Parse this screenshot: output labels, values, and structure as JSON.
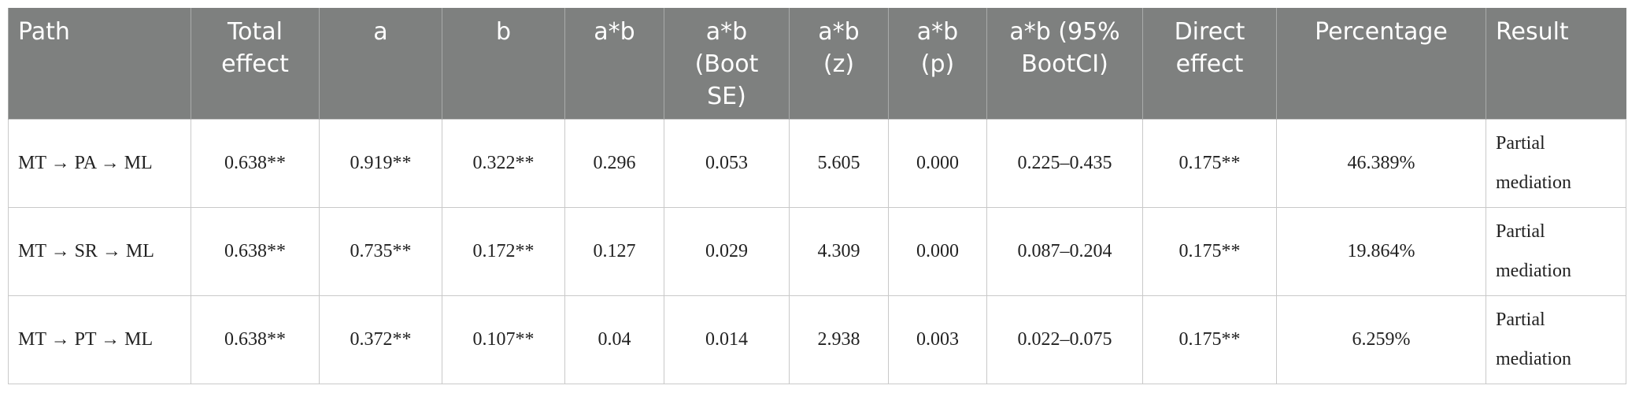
{
  "table": {
    "headers": [
      "Path",
      "Total effect",
      "a",
      "b",
      "a*b",
      "a*b (Boot SE)",
      "a*b (z)",
      "a*b (p)",
      "a*b (95% BootCI)",
      "Direct effect",
      "Percentage",
      "Result"
    ],
    "rows": [
      [
        "MT → PA → ML",
        "0.638**",
        "0.919**",
        "0.322**",
        "0.296",
        "0.053",
        "5.605",
        "0.000",
        "0.225–0.435",
        "0.175**",
        "46.389%",
        "Partial mediation"
      ],
      [
        "MT → SR → ML",
        "0.638**",
        "0.735**",
        "0.172**",
        "0.127",
        "0.029",
        "4.309",
        "0.000",
        "0.087–0.204",
        "0.175**",
        "19.864%",
        "Partial mediation"
      ],
      [
        "MT → PT → ML",
        "0.638**",
        "0.372**",
        "0.107**",
        "0.04",
        "0.014",
        "2.938",
        "0.003",
        "0.022–0.075",
        "0.175**",
        "6.259%",
        "Partial mediation"
      ]
    ]
  }
}
